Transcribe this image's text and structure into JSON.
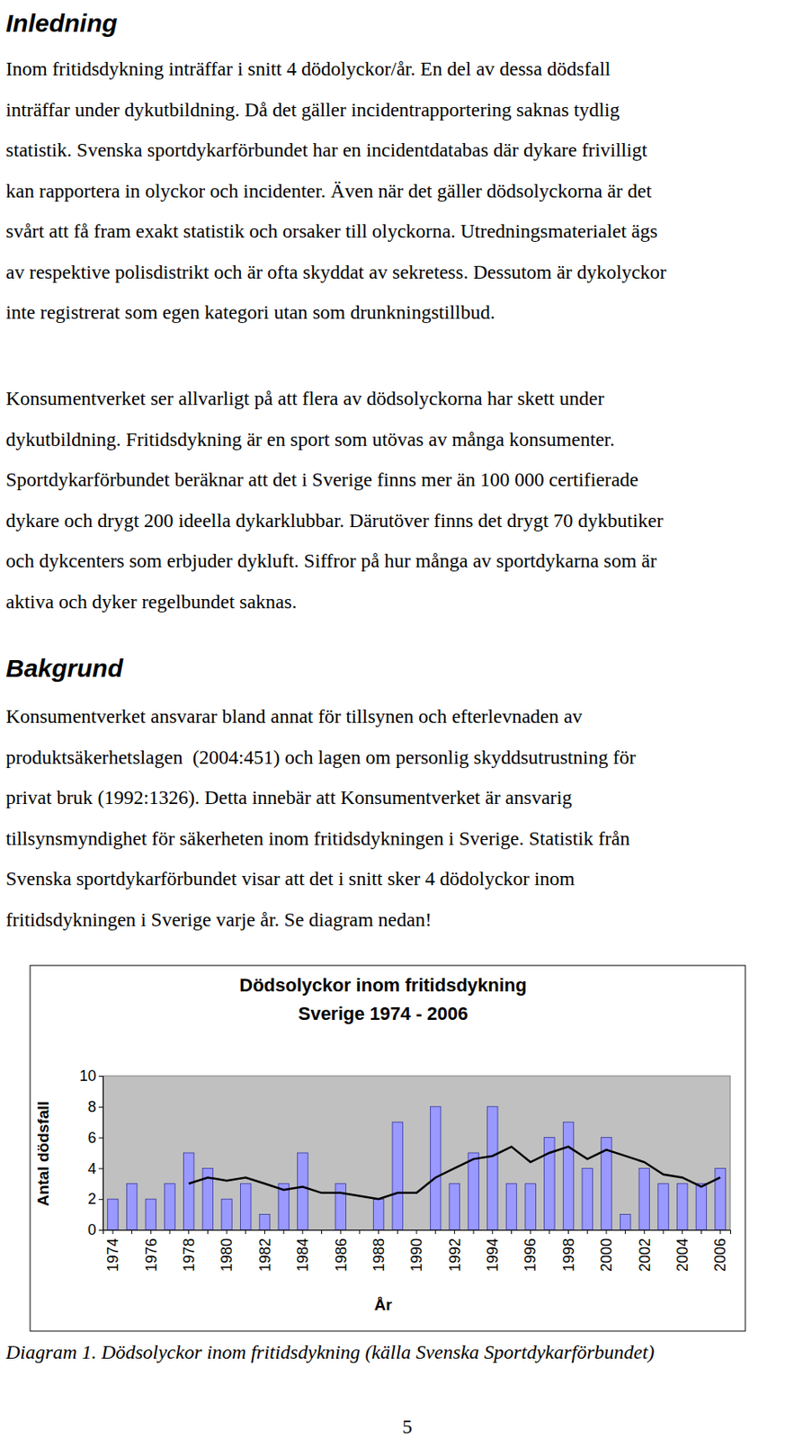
{
  "document": {
    "sections": [
      {
        "heading": "Inledning",
        "paragraphs": [
          [
            "Inom fritidsdykning inträffar i snitt 4 dödolyckor/år. En del av dessa dödsfall",
            "inträffar under dykutbildning. Då det gäller incidentrapportering saknas tydlig",
            "statistik. Svenska sportdykarförbundet har en incidentdatabas där dykare frivilligt",
            "kan rapportera in olyckor och incidenter. Även när det gäller dödsolyckorna är det",
            "svårt att få fram exakt statistik och orsaker till olyckorna. Utredningsmaterialet ägs",
            "av respektive polisdistrikt och är ofta skyddat av sekretess. Dessutom är dykolyckor",
            "inte registrerat som egen kategori utan som drunkningstillbud."
          ],
          [
            "Konsumentverket ser allvarligt på att flera av dödsolyckorna har skett under",
            "dykutbildning. Fritidsdykning är en sport som utövas av många konsumenter.",
            "Sportdykarförbundet beräknar att det i Sverige finns mer än 100 000 certifierade",
            "dykare och drygt 200 ideella dykarklubbar. Därutöver finns det drygt 70 dykbutiker",
            "och dykcenters som erbjuder dykluft. Siffror på hur många av sportdykarna som är",
            "aktiva och dyker regelbundet saknas."
          ]
        ]
      },
      {
        "heading": "Bakgrund",
        "paragraphs": [
          [
            "Konsumentverket ansvarar bland annat för tillsynen och efterlevnaden av",
            "produktsäkerhetslagen  (2004:451) och lagen om personlig skyddsutrustning för",
            "privat bruk (1992:1326). Detta innebär att Konsumentverket är ansvarig",
            "tillsynsmyndighet för säkerheten inom fritidsdykningen i Sverige. Statistik från",
            "Svenska sportdykarförbundet visar att det i snitt sker 4 dödolyckor inom",
            "fritidsdykningen i Sverige varje år. Se diagram nedan!"
          ]
        ]
      }
    ],
    "caption": "Diagram 1. Dödsolyckor inom fritidsdykning (källa Svenska Sportdykarförbundet)",
    "page_number": 5
  },
  "chart_data": {
    "type": "bar",
    "title": [
      "Dödsolyckor inom fritidsdykning",
      "Sverige 1974 - 2006"
    ],
    "x_label": "År",
    "y_label": "Antal dödsfall",
    "categories": [
      "1974",
      null,
      "1976",
      null,
      "1978",
      null,
      "1980",
      null,
      "1982",
      null,
      "1984",
      null,
      "1986",
      null,
      "1988",
      null,
      "1990",
      null,
      "1992",
      null,
      "1994",
      null,
      "1996",
      null,
      "1998",
      null,
      "2000",
      null,
      "2002",
      null,
      "2004",
      null,
      "2006"
    ],
    "series": [
      {
        "type": "bar",
        "color": "#9999ff",
        "values": [
          2,
          3,
          2,
          3,
          5,
          4,
          2,
          3,
          1,
          3,
          5,
          0,
          3,
          0,
          2,
          7,
          0,
          8,
          3,
          5,
          8,
          3,
          3,
          6,
          7,
          4,
          6,
          1,
          4,
          3,
          3,
          3,
          4
        ]
      },
      {
        "type": "line",
        "color": "#000000",
        "values": [
          null,
          null,
          null,
          null,
          3.0,
          3.4,
          3.2,
          3.4,
          3.0,
          2.6,
          2.8,
          2.4,
          2.4,
          2.2,
          2.0,
          2.4,
          2.4,
          3.4,
          4.0,
          4.6,
          4.8,
          5.4,
          4.4,
          5.0,
          5.4,
          4.6,
          5.2,
          4.8,
          4.4,
          3.6,
          3.4,
          2.8,
          3.4
        ]
      }
    ],
    "ylim": [
      0,
      10
    ],
    "yticks": [
      0,
      2,
      4,
      6,
      8,
      10
    ],
    "grid": false
  }
}
